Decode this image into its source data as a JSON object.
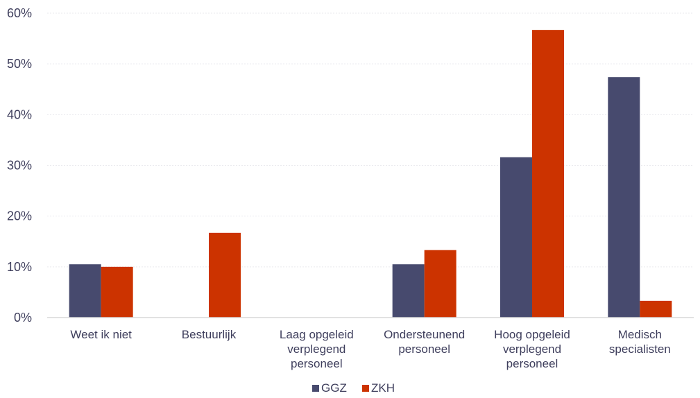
{
  "chart_data": {
    "type": "bar",
    "categories": [
      [
        "Weet ik niet"
      ],
      [
        "Bestuurlijk"
      ],
      [
        "Laag opgeleid",
        "verplegend",
        "personeel"
      ],
      [
        "Ondersteunend",
        "personeel"
      ],
      [
        "Hoog opgeleid",
        "verplegend",
        "personeel"
      ],
      [
        "Medisch",
        "specialisten"
      ]
    ],
    "series": [
      {
        "name": "GGZ",
        "color": "#474a6e",
        "values": [
          10.5,
          0,
          0,
          10.5,
          31.6,
          47.4
        ]
      },
      {
        "name": "ZKH",
        "color": "#cc3300",
        "values": [
          10.0,
          16.7,
          0,
          13.3,
          56.7,
          3.3
        ]
      }
    ],
    "ylim": [
      0,
      60
    ],
    "yticks": [
      0,
      10,
      20,
      30,
      40,
      50,
      60
    ],
    "ytick_suffix": "%",
    "grid": true,
    "legend_position": "bottom-center",
    "title": "",
    "xlabel": "",
    "ylabel": ""
  }
}
